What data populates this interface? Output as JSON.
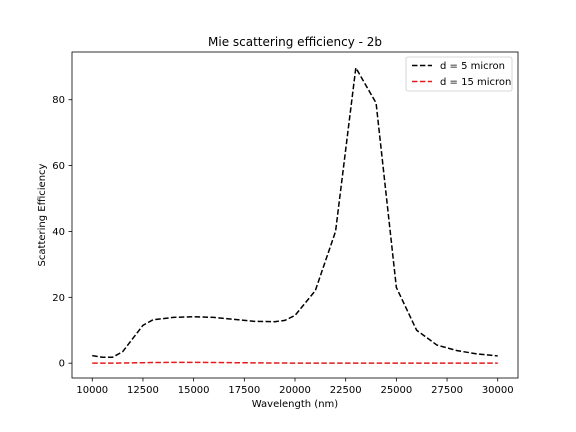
{
  "chart_data": {
    "type": "line",
    "title": "Mie scattering efficiency - 2b",
    "xlabel": "Wavelength (nm)",
    "ylabel": "Scattering Efficiency",
    "xlim": [
      9000,
      31000
    ],
    "ylim": [
      -4.5,
      94.5
    ],
    "xticks": [
      10000,
      12500,
      15000,
      17500,
      20000,
      22500,
      25000,
      27500,
      30000
    ],
    "xtick_labels": [
      "10000",
      "12500",
      "15000",
      "17500",
      "20000",
      "22500",
      "25000",
      "27500",
      "30000"
    ],
    "yticks": [
      0,
      20,
      40,
      60,
      80
    ],
    "ytick_labels": [
      "0",
      "20",
      "40",
      "60",
      "80"
    ],
    "grid": false,
    "legend_position": "top-right",
    "x": [
      10000,
      10500,
      11000,
      11500,
      12000,
      12500,
      13000,
      14000,
      15000,
      16000,
      17000,
      18000,
      19000,
      19500,
      20000,
      21000,
      22000,
      23000,
      24000,
      25000,
      26000,
      27000,
      28000,
      29000,
      30000
    ],
    "series": [
      {
        "name": "d = 5 micron",
        "color": "#000000",
        "line_style": "dashed",
        "values": [
          2.3,
          1.8,
          1.8,
          3.5,
          7.5,
          11.5,
          13.2,
          13.9,
          14.1,
          13.9,
          13.3,
          12.7,
          12.6,
          13.0,
          14.5,
          22.0,
          40.0,
          89.7,
          79.0,
          23.0,
          10.0,
          5.5,
          3.8,
          2.8,
          2.2
        ]
      },
      {
        "name": "d = 15 micron",
        "color": "#e41a1c",
        "line_style": "dashed",
        "values": [
          0.0,
          0.0,
          0.0,
          0.05,
          0.1,
          0.15,
          0.2,
          0.25,
          0.25,
          0.2,
          0.15,
          0.1,
          0.05,
          0.05,
          0.0,
          0.0,
          0.0,
          0.0,
          0.0,
          0.0,
          0.0,
          0.0,
          0.0,
          0.0,
          0.0
        ]
      }
    ]
  }
}
